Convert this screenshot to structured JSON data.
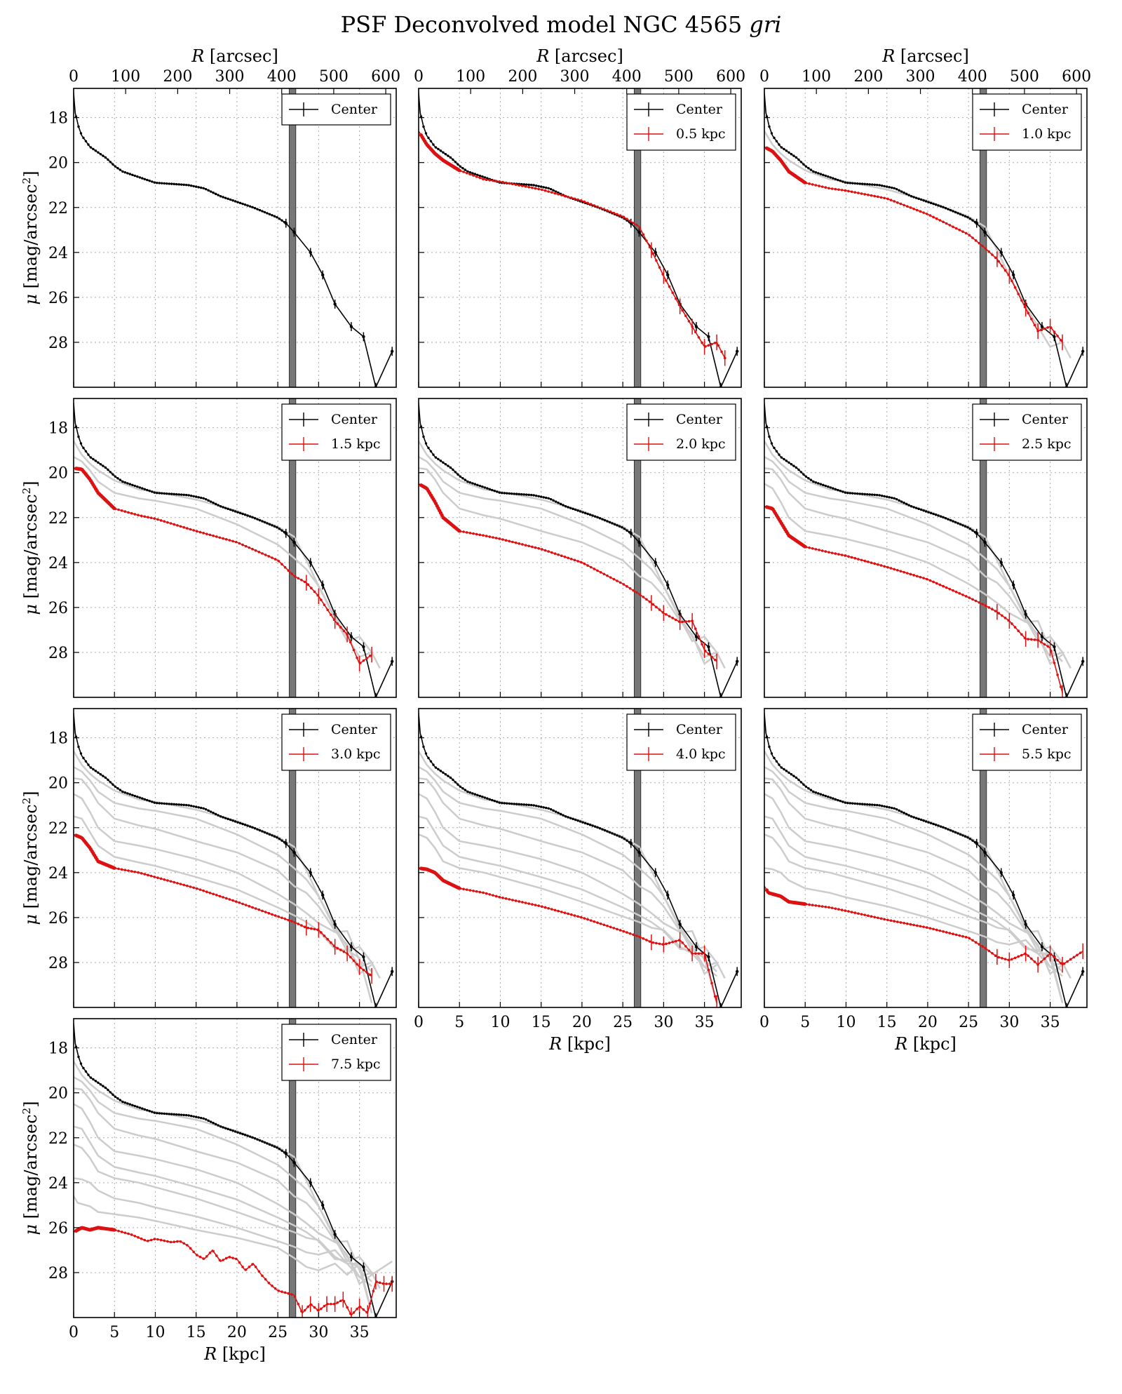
{
  "figure": {
    "title_prefix": "PSF Deconvolved model NGC 4565 ",
    "title_band": "gri"
  },
  "axes_text": {
    "xlabel_bottom_var": "R",
    "xlabel_bottom_unit": " [kpc]",
    "xlabel_top_var": "R",
    "xlabel_top_unit": " [arcsec]",
    "ylabel_var": "μ",
    "ylabel_unit": " [mag/arcsec",
    "ylabel_sup": "2",
    "ylabel_close": "]"
  },
  "legend_center_label": "Center",
  "chart_data": {
    "type": "line",
    "grid": true,
    "xlim_kpc": [
      0,
      39.5
    ],
    "ylim_mag": [
      30,
      16.7
    ],
    "y_inverted": true,
    "x_ticks_kpc": [
      "0",
      "5",
      "10",
      "15",
      "20",
      "25",
      "30",
      "35"
    ],
    "x_ticks_arcsec": [
      "0",
      "100",
      "200",
      "300",
      "400",
      "500",
      "600"
    ],
    "y_ticks": [
      "18",
      "20",
      "22",
      "24",
      "26",
      "28"
    ],
    "shaded_band_kpc": [
      26.4,
      27.2
    ],
    "colors": {
      "center": "#000000",
      "highlight": "#dd1111",
      "others": "#cccccc",
      "band": "#777777"
    },
    "center_profile": {
      "name": "Center",
      "x": [
        0,
        0.1,
        0.2,
        0.4,
        0.6,
        0.8,
        1,
        1.5,
        2,
        3,
        4,
        5,
        6,
        8,
        10,
        12,
        14,
        16,
        18,
        20,
        22,
        24,
        25,
        26,
        27,
        29,
        30.5,
        32,
        34,
        35.5,
        37,
        39
      ],
      "y": [
        16.9,
        17.4,
        17.8,
        18.1,
        18.4,
        18.6,
        18.8,
        19.05,
        19.3,
        19.55,
        19.8,
        20.15,
        20.4,
        20.65,
        20.9,
        20.95,
        21.0,
        21.15,
        21.5,
        21.75,
        22.0,
        22.3,
        22.45,
        22.7,
        23.1,
        24.0,
        25.0,
        26.3,
        27.3,
        27.75,
        30.0,
        28.4
      ]
    },
    "panels": [
      {
        "legend": "",
        "x": [],
        "y": []
      },
      {
        "legend": "0.5 kpc",
        "x": [
          0,
          0.5,
          1,
          2,
          3,
          5,
          8,
          10,
          15,
          20,
          25,
          27,
          28.5,
          30,
          32,
          33.5,
          35,
          36.5,
          37.5
        ],
        "y": [
          18.6,
          18.9,
          19.2,
          19.6,
          19.9,
          20.35,
          20.75,
          20.85,
          21.2,
          21.7,
          22.4,
          22.85,
          23.9,
          25.05,
          26.4,
          27.3,
          28.2,
          28.0,
          28.7
        ]
      },
      {
        "legend": "1.0 kpc",
        "x": [
          0,
          1,
          2,
          3,
          5,
          8,
          10,
          15,
          20,
          25,
          27,
          28.5,
          30,
          32,
          33.5,
          35,
          36.5
        ],
        "y": [
          19.3,
          19.5,
          19.9,
          20.4,
          20.9,
          21.15,
          21.25,
          21.6,
          22.3,
          23.2,
          23.8,
          24.3,
          25.05,
          26.5,
          27.5,
          27.3,
          28.0
        ]
      },
      {
        "legend": "1.5 kpc",
        "x": [
          0,
          1,
          2,
          3,
          5,
          8,
          10,
          15,
          20,
          25,
          27,
          28.5,
          30,
          32,
          33.5,
          35,
          36.5
        ],
        "y": [
          19.8,
          19.85,
          20.3,
          20.9,
          21.6,
          21.9,
          22.05,
          22.6,
          23.1,
          23.9,
          24.6,
          24.9,
          25.5,
          26.6,
          27.2,
          28.5,
          28.1
        ]
      },
      {
        "legend": "2.0 kpc",
        "x": [
          0,
          1,
          2,
          3,
          5,
          8,
          10,
          15,
          20,
          25,
          27,
          28.5,
          30,
          32,
          33.5,
          35,
          36.5
        ],
        "y": [
          20.5,
          20.7,
          21.3,
          22.0,
          22.6,
          22.8,
          22.95,
          23.4,
          24.0,
          24.95,
          25.4,
          25.8,
          26.25,
          26.65,
          26.6,
          27.9,
          28.4
        ]
      },
      {
        "legend": "2.5 kpc",
        "x": [
          0,
          1,
          2,
          3,
          5,
          8,
          10,
          15,
          20,
          25,
          27,
          28.5,
          30,
          32,
          33.5,
          35,
          36.5
        ],
        "y": [
          21.5,
          21.6,
          22.2,
          22.8,
          23.3,
          23.55,
          23.7,
          24.2,
          24.75,
          25.55,
          25.9,
          26.2,
          26.6,
          27.4,
          27.45,
          27.8,
          29.8
        ]
      },
      {
        "legend": "3.0 kpc",
        "x": [
          0,
          1,
          2,
          3,
          5,
          8,
          10,
          15,
          20,
          25,
          27,
          28.5,
          30,
          32,
          33.5,
          35,
          36.5
        ],
        "y": [
          22.3,
          22.45,
          22.9,
          23.5,
          23.8,
          24.0,
          24.2,
          24.7,
          25.3,
          25.95,
          26.2,
          26.45,
          26.55,
          27.3,
          27.6,
          28.2,
          28.6
        ]
      },
      {
        "legend": "4.0 kpc",
        "x": [
          0,
          1,
          2,
          3,
          5,
          8,
          10,
          15,
          20,
          25,
          27,
          28.5,
          30,
          32,
          33.5,
          35,
          36.5
        ],
        "y": [
          23.8,
          23.85,
          24.0,
          24.35,
          24.7,
          24.9,
          25.1,
          25.5,
          26.0,
          26.6,
          26.85,
          27.1,
          27.2,
          27.0,
          27.6,
          27.6,
          29.8
        ]
      },
      {
        "legend": "5.5 kpc",
        "x": [
          0,
          0.5,
          1,
          2,
          3,
          5,
          8,
          10,
          15,
          20,
          25,
          27,
          28.5,
          30,
          32,
          33.5,
          35,
          36.5,
          39
        ],
        "y": [
          24.6,
          24.9,
          24.95,
          25.05,
          25.3,
          25.4,
          25.55,
          25.7,
          26.1,
          26.45,
          26.9,
          27.35,
          27.75,
          27.9,
          27.6,
          28.1,
          27.6,
          28.1,
          27.5
        ]
      },
      {
        "legend": "7.5 kpc",
        "x": [
          0,
          1,
          2,
          3,
          5,
          7,
          9,
          10,
          12,
          13,
          14,
          15,
          16,
          17,
          18,
          19,
          20,
          21,
          22,
          23,
          24,
          25,
          26,
          27,
          28,
          29,
          30,
          31,
          32,
          33,
          34,
          35,
          36,
          37,
          38,
          39
        ],
        "y": [
          26.2,
          26.0,
          26.1,
          26.0,
          26.1,
          26.3,
          26.6,
          26.5,
          26.65,
          26.6,
          26.8,
          27.2,
          27.4,
          27.0,
          27.5,
          27.3,
          27.4,
          27.9,
          27.6,
          28.1,
          28.5,
          28.8,
          28.9,
          29.0,
          29.8,
          29.4,
          29.7,
          29.4,
          29.4,
          29.2,
          29.9,
          29.5,
          29.8,
          28.4,
          28.5,
          28.5
        ]
      }
    ]
  }
}
